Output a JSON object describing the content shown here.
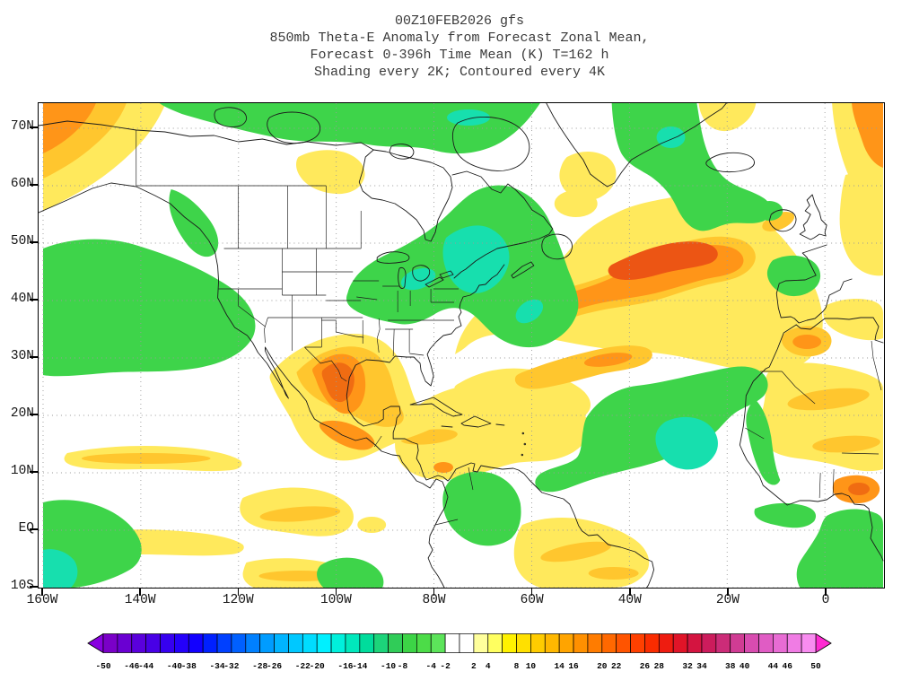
{
  "title": {
    "line1": "00Z10FEB2026 gfs",
    "line2": "850mb Theta-E Anomaly from Forecast Zonal Mean,",
    "line3": "Forecast 0-396h Time Mean (K) T=162 h",
    "line4": "Shading every 2K; Contoured every 4K"
  },
  "axes": {
    "lat_labels": [
      "70N",
      "60N",
      "50N",
      "40N",
      "30N",
      "20N",
      "10N",
      "EQ",
      "10S"
    ],
    "lon_labels": [
      "160W",
      "140W",
      "120W",
      "100W",
      "80W",
      "60W",
      "40W",
      "20W",
      "0"
    ]
  },
  "colorbar": {
    "tick_labels": [
      "-50",
      "-46",
      "-44",
      "-40",
      "-38",
      "-34",
      "-32",
      "-28",
      "-26",
      "-22",
      "-20",
      "-16",
      "-14",
      "-10",
      "-8",
      "-4",
      "-2",
      "2",
      "4",
      "8",
      "10",
      "14",
      "16",
      "20",
      "22",
      "26",
      "28",
      "32",
      "34",
      "38",
      "40",
      "44",
      "46",
      "50"
    ],
    "cell_colors": [
      "#7a00c8",
      "#6a00d2",
      "#5a00dc",
      "#4800e6",
      "#3600f0",
      "#2400fa",
      "#1200ff",
      "#0020ff",
      "#0040ff",
      "#0060ff",
      "#0080ff",
      "#009cff",
      "#00b4ff",
      "#00c8ff",
      "#00dcff",
      "#00f0ff",
      "#00f0dc",
      "#00e8bc",
      "#00dc9c",
      "#1cd47a",
      "#30cc58",
      "#3cd446",
      "#4cdc48",
      "#5ce45a",
      "#ffffff",
      "#ffffff",
      "#ffff9c",
      "#ffff60",
      "#fff200",
      "#ffe000",
      "#ffcc00",
      "#ffb800",
      "#ffa400",
      "#ff9000",
      "#ff7c00",
      "#ff6800",
      "#ff5400",
      "#ff4000",
      "#fa2c00",
      "#ee1c10",
      "#e01428",
      "#d41440",
      "#cc1c5c",
      "#cc2c78",
      "#d03c94",
      "#d84cb0",
      "#e05cc4",
      "#e86cd4",
      "#f07ce4",
      "#f88cf0"
    ],
    "arrow_left_color": "#8800e0",
    "arrow_right_color": "#ff2ad2"
  },
  "palette": {
    "yellow": "#ffe95c",
    "gold": "#ffc62e",
    "orange": "#ff9518",
    "deep_orange": "#f06c12",
    "red_orange": "#ec5514",
    "green": "#3ed44a",
    "cyan": "#17dfae",
    "grid_line": "#9a9a9a",
    "land_line": "#1b1b1b"
  }
}
